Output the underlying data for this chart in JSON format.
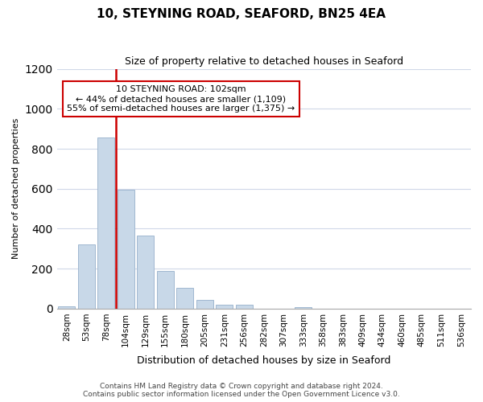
{
  "title": "10, STEYNING ROAD, SEAFORD, BN25 4EA",
  "subtitle": "Size of property relative to detached houses in Seaford",
  "xlabel": "Distribution of detached houses by size in Seaford",
  "ylabel": "Number of detached properties",
  "bar_labels": [
    "28sqm",
    "53sqm",
    "78sqm",
    "104sqm",
    "129sqm",
    "155sqm",
    "180sqm",
    "205sqm",
    "231sqm",
    "256sqm",
    "282sqm",
    "307sqm",
    "333sqm",
    "358sqm",
    "383sqm",
    "409sqm",
    "434sqm",
    "460sqm",
    "485sqm",
    "511sqm",
    "536sqm"
  ],
  "bar_values": [
    10,
    320,
    855,
    595,
    365,
    188,
    105,
    45,
    18,
    18,
    0,
    0,
    8,
    0,
    0,
    0,
    0,
    0,
    0,
    0,
    0
  ],
  "bar_color": "#c8d8e8",
  "bar_edge_color": "#a0b8d0",
  "vline_index": 3,
  "vline_color": "#cc0000",
  "annotation_text": "10 STEYNING ROAD: 102sqm\n← 44% of detached houses are smaller (1,109)\n55% of semi-detached houses are larger (1,375) →",
  "annotation_box_color": "#ffffff",
  "annotation_box_edge_color": "#cc0000",
  "ylim": [
    0,
    1200
  ],
  "yticks": [
    0,
    200,
    400,
    600,
    800,
    1000,
    1200
  ],
  "footer_line1": "Contains HM Land Registry data © Crown copyright and database right 2024.",
  "footer_line2": "Contains public sector information licensed under the Open Government Licence v3.0.",
  "background_color": "#ffffff",
  "grid_color": "#d0d8e8"
}
